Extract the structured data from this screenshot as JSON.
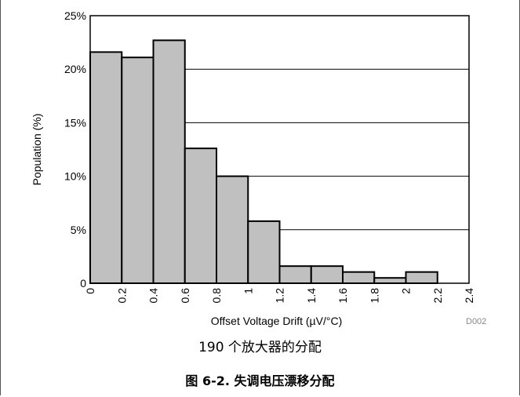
{
  "chart_data": {
    "type": "bar",
    "bins": [
      {
        "x0": 0.0,
        "x1": 0.2,
        "value": 21.6
      },
      {
        "x0": 0.2,
        "x1": 0.4,
        "value": 21.1
      },
      {
        "x0": 0.4,
        "x1": 0.6,
        "value": 22.7
      },
      {
        "x0": 0.6,
        "x1": 0.8,
        "value": 12.6
      },
      {
        "x0": 0.8,
        "x1": 1.0,
        "value": 10.0
      },
      {
        "x0": 1.0,
        "x1": 1.2,
        "value": 5.8
      },
      {
        "x0": 1.2,
        "x1": 1.4,
        "value": 1.6
      },
      {
        "x0": 1.4,
        "x1": 1.6,
        "value": 1.6
      },
      {
        "x0": 1.6,
        "x1": 1.8,
        "value": 1.05
      },
      {
        "x0": 1.8,
        "x1": 2.0,
        "value": 0.5
      },
      {
        "x0": 2.0,
        "x1": 2.2,
        "value": 1.05
      }
    ],
    "xlabel": "Offset Voltage Drift (µV/°C)",
    "ylabel": "Population (%)",
    "xlim": [
      0,
      2.4
    ],
    "ylim": [
      0,
      25
    ],
    "xticks": [
      "0",
      "0.2",
      "0.4",
      "0.6",
      "0.8",
      "1",
      "1.2",
      "1.4",
      "1.6",
      "1.8",
      "2",
      "2.2",
      "2.4"
    ],
    "yticks": [
      "0",
      "5%",
      "10%",
      "15%",
      "20%",
      "25%"
    ],
    "grid": "horizontal",
    "bar_color": "#c0c0c0",
    "code": "D002"
  },
  "subcaption": "190 个放大器的分配",
  "figcaption": "图 6-2. 失调电压漂移分配"
}
